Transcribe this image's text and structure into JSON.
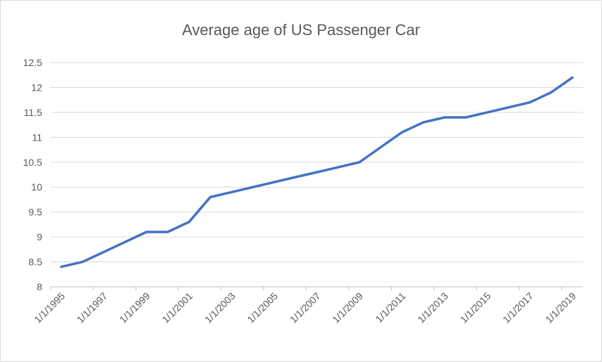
{
  "chart_data": {
    "type": "line",
    "title": "Average age of US Passenger Car",
    "xlabel": "",
    "ylabel": "",
    "ylim": [
      8,
      12.5
    ],
    "yticks": [
      "8",
      "8.5",
      "9",
      "9.5",
      "10",
      "10.5",
      "11",
      "11.5",
      "12",
      "12.5"
    ],
    "xticks": [
      "1/1/1995",
      "1/1/1997",
      "1/1/1999",
      "1/1/2001",
      "1/1/2003",
      "1/1/2005",
      "1/1/2007",
      "1/1/2009",
      "1/1/2011",
      "1/1/2013",
      "1/1/2015",
      "1/1/2017",
      "1/1/2019"
    ],
    "grid": true,
    "legend": "none",
    "series": [
      {
        "color": "#4472c4",
        "x": [
          "1995",
          "1996",
          "1997",
          "1998",
          "1999",
          "2000",
          "2001",
          "2002",
          "2003",
          "2004",
          "2005",
          "2006",
          "2007",
          "2008",
          "2009",
          "2010",
          "2011",
          "2012",
          "2013",
          "2014",
          "2015",
          "2016",
          "2017",
          "2018",
          "2019"
        ],
        "values": [
          8.4,
          8.5,
          8.7,
          8.9,
          9.1,
          9.1,
          9.3,
          9.8,
          9.9,
          10.0,
          10.1,
          10.2,
          10.3,
          10.4,
          10.5,
          10.8,
          11.1,
          11.3,
          11.4,
          11.4,
          11.5,
          11.6,
          11.7,
          11.9,
          12.2
        ]
      }
    ]
  }
}
